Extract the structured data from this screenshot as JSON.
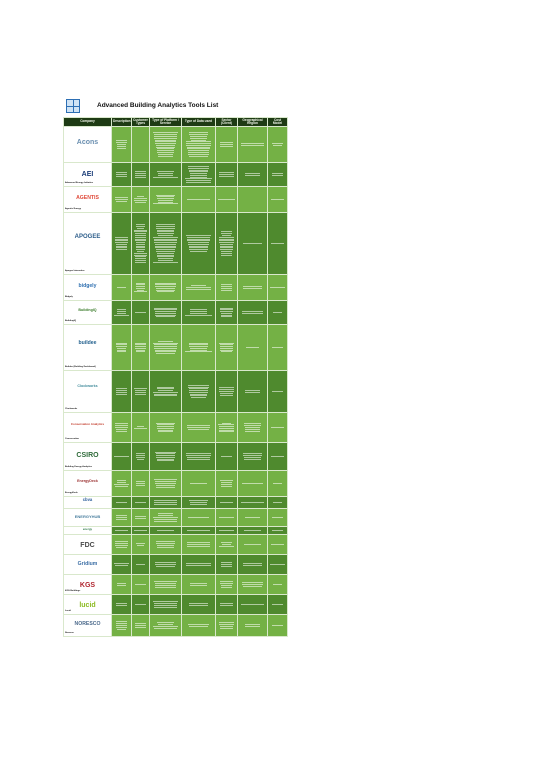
{
  "document": {
    "title": "Advanced Building Analytics Tools List",
    "logo_icon": "grid-logo-icon",
    "colors": {
      "header": "#1e3b14",
      "row_dark": "#4f8a2e",
      "row_light": "#74b145",
      "border": "#d9e8cc"
    },
    "columns": [
      "Company",
      "Description",
      "Customer Types",
      "Type of Platform / Service",
      "Type of Data used",
      "Sector (Client)",
      "Geographical Region",
      "Cost Model"
    ],
    "rows": [
      {
        "logo": "Acons",
        "logo_color": "#6a8fb0",
        "name": "",
        "lines": [
          0,
          5,
          0,
          14,
          14,
          3,
          2,
          2
        ],
        "h": 36
      },
      {
        "logo": "AEI",
        "logo_color": "#1b3d78",
        "name": "Advanced Energy Initiative",
        "lines": [
          0,
          3,
          4,
          4,
          10,
          3,
          2,
          2
        ],
        "h": 24
      },
      {
        "logo": "AGENTIS",
        "logo_color": "#e04a3a",
        "name": "Agentis Energy",
        "lines": [
          0,
          3,
          4,
          6,
          1,
          1,
          0,
          1
        ],
        "h": 26
      },
      {
        "logo": "APOGEE",
        "logo_color": "#2c5d8a",
        "name": "Apogee Interactive",
        "lines": [
          0,
          8,
          22,
          22,
          10,
          14,
          1,
          1
        ],
        "h": 62
      },
      {
        "logo": "bidgely",
        "logo_color": "#2e6fb0",
        "name": "Bidgely",
        "lines": [
          0,
          1,
          6,
          6,
          3,
          4,
          2,
          1
        ],
        "h": 26
      },
      {
        "logo": "BuildingIQ",
        "logo_color": "#3a7c2a",
        "name": "BuildingIQ",
        "lines": [
          0,
          4,
          1,
          6,
          4,
          6,
          2,
          1
        ],
        "h": 24
      },
      {
        "logo": "buildee",
        "logo_color": "#1f5e8c",
        "name": "Buildee (Building Dashboard)",
        "lines": [
          0,
          6,
          6,
          8,
          6,
          6,
          1,
          1
        ],
        "h": 46
      },
      {
        "logo": "Clockworks",
        "logo_color": "#3f8a9a",
        "name": "Clockworks",
        "lines": [
          0,
          4,
          4,
          6,
          8,
          5,
          2,
          1
        ],
        "h": 42
      },
      {
        "logo": "Conservation Analytics",
        "logo_color": "#c23b2a",
        "name": "Conservation",
        "lines": [
          0,
          5,
          2,
          6,
          3,
          6,
          5,
          1
        ],
        "h": 30
      },
      {
        "logo": "CSIRO",
        "logo_color": "#2f6b3a",
        "name": "Building Energy Analytics",
        "lines": [
          0,
          1,
          4,
          6,
          4,
          1,
          4,
          1
        ],
        "h": 28
      },
      {
        "logo": "EnergyDeck",
        "logo_color": "#9a2f2f",
        "name": "EnergyDeck",
        "lines": [
          0,
          4,
          3,
          5,
          1,
          4,
          1,
          1
        ],
        "h": 26
      },
      {
        "logo": "cbva",
        "logo_color": "#2a5d9a",
        "name": "",
        "lines": [
          0,
          1,
          1,
          3,
          3,
          1,
          1,
          1
        ],
        "h": 12
      },
      {
        "logo": "ENERGYHUB",
        "logo_color": "#4a7f9f",
        "name": "",
        "lines": [
          0,
          3,
          2,
          5,
          1,
          1,
          1,
          1
        ],
        "h": 18
      },
      {
        "logo": "energy",
        "logo_color": "#2f7a4a",
        "name": "",
        "lines": [
          0,
          1,
          1,
          1,
          1,
          1,
          1,
          1
        ],
        "h": 8
      },
      {
        "logo": "FDC",
        "logo_color": "#4a4a4a",
        "name": "",
        "lines": [
          0,
          4,
          2,
          4,
          3,
          3,
          1,
          1
        ],
        "h": 20
      },
      {
        "logo": "Gridium",
        "logo_color": "#3b6ea5",
        "name": "",
        "lines": [
          0,
          2,
          1,
          3,
          2,
          3,
          2,
          1
        ],
        "h": 20
      },
      {
        "logo": "KGS",
        "logo_color": "#b0242e",
        "name": "KGS Buildings",
        "lines": [
          0,
          2,
          1,
          4,
          2,
          4,
          3,
          1
        ],
        "h": 20
      },
      {
        "logo": "lucid",
        "logo_color": "#8dbb24",
        "name": "Lucid",
        "lines": [
          0,
          2,
          1,
          4,
          2,
          2,
          1,
          1
        ],
        "h": 20
      },
      {
        "logo": "NORESCO",
        "logo_color": "#4c6a8c",
        "name": "Noresco",
        "lines": [
          0,
          5,
          3,
          4,
          2,
          4,
          2,
          1
        ],
        "h": 22
      }
    ]
  }
}
